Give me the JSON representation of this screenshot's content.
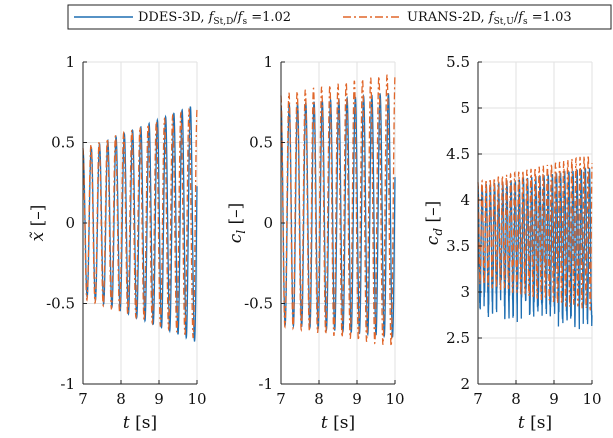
{
  "legend": {
    "entries": [
      {
        "label": "DDES-3D, f_{St,D}/f_s =1.02",
        "color": "#1f6fb2",
        "style": "solid"
      },
      {
        "label": "URANS-2D, f_{St,U}/f_s =1.03",
        "color": "#e0662a",
        "style": "dashdot"
      }
    ],
    "placement": "top"
  },
  "chart_data": [
    {
      "type": "line",
      "title": "",
      "xlabel": "t [s]",
      "ylabel": "x̃ [–]",
      "xlim": [
        7,
        10
      ],
      "ylim": [
        -1,
        1
      ],
      "xticks": [
        "7",
        "8",
        "9",
        "10"
      ],
      "yticks": [
        "-1",
        "-0.5",
        "0",
        "0.5",
        "1"
      ],
      "grid": true,
      "series": [
        {
          "name": "DDES-3D",
          "color": "#1f6fb2",
          "freq": 4.6,
          "amp_start": 0.45,
          "amp_end": 0.74,
          "offset": 0.0,
          "noise": 0.0
        },
        {
          "name": "URANS-2D",
          "color": "#e0662a",
          "freq": 4.65,
          "amp_start": 0.47,
          "amp_end": 0.72,
          "offset": 0.0,
          "noise": 0.0
        }
      ]
    },
    {
      "type": "line",
      "title": "",
      "xlabel": "t [s]",
      "ylabel": "c_l [–]",
      "xlim": [
        7,
        10
      ],
      "ylim": [
        -1,
        1
      ],
      "xticks": [
        "7",
        "8",
        "9",
        "10"
      ],
      "yticks": [
        "-1",
        "-0.5",
        "0",
        "0.5",
        "1"
      ],
      "grid": true,
      "series": [
        {
          "name": "DDES-3D",
          "color": "#1f6fb2",
          "freq": 4.6,
          "amp_start": 0.68,
          "amp_end": 0.76,
          "offset": 0.05,
          "noise": 0.0
        },
        {
          "name": "URANS-2D",
          "color": "#e0662a",
          "freq": 4.65,
          "amp_start": 0.72,
          "amp_end": 0.85,
          "offset": 0.08,
          "noise": 0.0
        }
      ]
    },
    {
      "type": "line",
      "title": "",
      "xlabel": "t [s]",
      "ylabel": "c_d [–]",
      "xlim": [
        7,
        10
      ],
      "ylim": [
        2,
        5.5
      ],
      "xticks": [
        "7",
        "8",
        "9",
        "10"
      ],
      "yticks": [
        "2",
        "2.5",
        "3",
        "3.5",
        "4",
        "4.5",
        "5",
        "5.5"
      ],
      "grid": true,
      "series": [
        {
          "name": "DDES-3D",
          "color": "#1f6fb2",
          "freq": 9.2,
          "amp_start": 0.6,
          "amp_end": 0.8,
          "offset": 3.55,
          "noise": 0.35
        },
        {
          "name": "URANS-2D",
          "color": "#e0662a",
          "freq": 9.3,
          "amp_start": 0.55,
          "amp_end": 0.85,
          "offset": 3.65,
          "noise": 0.05
        }
      ]
    }
  ]
}
